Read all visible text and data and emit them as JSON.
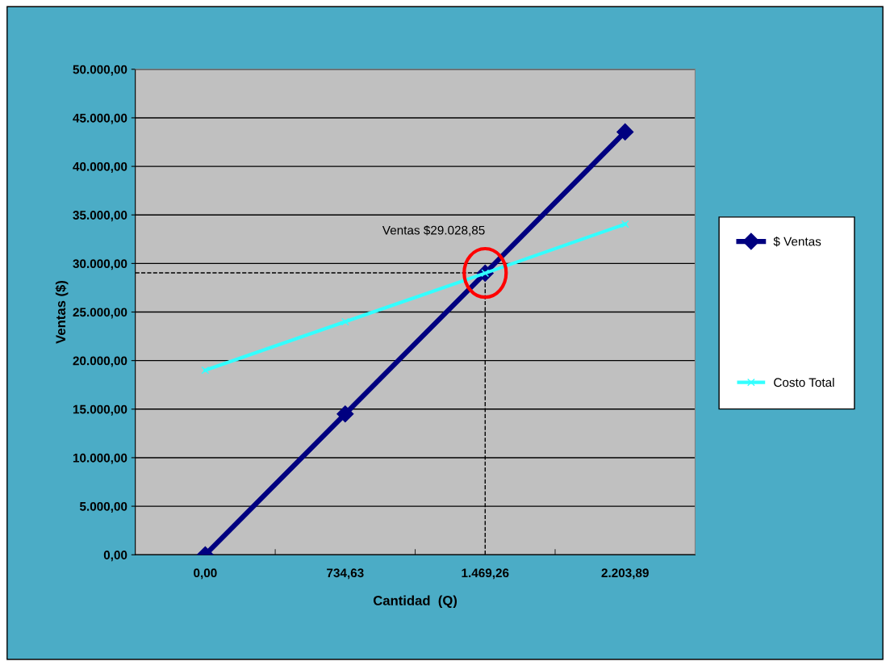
{
  "chart_data": {
    "type": "line",
    "xlabel": "Cantidad  (Q)",
    "ylabel": "Ventas ($)",
    "categories": [
      "0,00",
      "734,63",
      "1.469,26",
      "2.203,89"
    ],
    "series": [
      {
        "name": "$ Ventas",
        "color": "#000080",
        "marker": "diamond",
        "values": [
          0,
          14500,
          29000,
          43550
        ]
      },
      {
        "name": "Costo Total",
        "color": "#33ffff",
        "marker": "cross",
        "values": [
          19000,
          24000,
          29000,
          34050
        ]
      }
    ],
    "ylim": [
      0,
      50000
    ],
    "yticks": [
      {
        "value": 0,
        "label": "0,00"
      },
      {
        "value": 5000,
        "label": "5.000,00"
      },
      {
        "value": 10000,
        "label": "10.000,00"
      },
      {
        "value": 15000,
        "label": "15.000,00"
      },
      {
        "value": 20000,
        "label": "20.000,00"
      },
      {
        "value": 25000,
        "label": "25.000,00"
      },
      {
        "value": 30000,
        "label": "30.000,00"
      },
      {
        "value": 35000,
        "label": "35.000,00"
      },
      {
        "value": 40000,
        "label": "40.000,00"
      },
      {
        "value": 45000,
        "label": "45.000,00"
      },
      {
        "value": 50000,
        "label": "50.000,00"
      }
    ],
    "annotations": [
      {
        "text": "Ventas $29.028,85",
        "x": "1.469,26",
        "y": 29028.85
      }
    ],
    "ref_lines": [
      {
        "axis": "y",
        "value": 29028.85,
        "color": "#000000",
        "line_style": "dashed"
      },
      {
        "axis": "x",
        "value": "1.469,26",
        "color": "#000000",
        "line_style": "dashed"
      }
    ],
    "grid": "y",
    "legend": "right",
    "line_style": "solid"
  }
}
